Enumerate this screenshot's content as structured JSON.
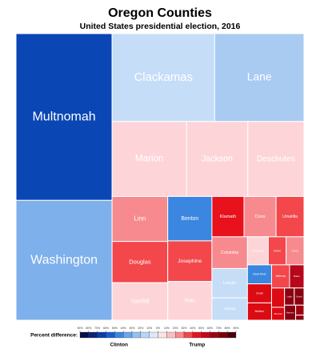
{
  "chart_data": {
    "type": "treemap",
    "title": "Oregon Counties",
    "subtitle": "United States presidential election, 2016",
    "categories": [
      "Multnomah",
      "Washington",
      "Clackamas",
      "Lane",
      "Marion",
      "Jackson",
      "Deschutes",
      "Linn",
      "Douglas",
      "Yamhill",
      "Benton",
      "Josephine",
      "Polk",
      "Klamath",
      "Coos",
      "Umatilla",
      "Columbia",
      "Lincoln",
      "Clatsop",
      "Tillamook",
      "Union",
      "Curry",
      "Hood River",
      "Crook",
      "Malheur",
      "Jefferson",
      "Baker",
      null,
      "Morrow",
      "Lake",
      "Grant",
      "Harney",
      null,
      null
    ],
    "values": [
      384,
      276,
      216,
      188,
      134,
      110,
      101,
      60,
      55,
      50,
      47,
      43,
      41,
      31,
      31,
      27,
      27,
      25,
      19,
      14,
      12,
      12,
      11,
      11,
      10,
      10,
      8,
      6,
      4,
      4,
      4,
      4,
      2,
      1
    ],
    "colors": [
      "#0a46b4",
      "#7eb0ec",
      "#c6ddf8",
      "#a9cbf2",
      "#fdd5d9",
      "#fdd5d9",
      "#fdd5d9",
      "#f78a8e",
      "#f3474b",
      "#fdd5d9",
      "#3a86e0",
      "#f3474b",
      "#fdd5d9",
      "#e8121c",
      "#f78a8e",
      "#f3474b",
      "#f78a8e",
      "#c6ddf8",
      "#c6ddf8",
      "#fdd5d9",
      "#f3474b",
      "#f78a8e",
      "#3a86e0",
      "#dc0a12",
      "#dc0a12",
      "#f3474b",
      "#b8061a",
      "#dc0a12",
      "#dc0a12",
      "#8a0010",
      "#8a0010",
      "#8a0010",
      "#a0000f",
      "#8a0010"
    ],
    "legend": {
      "title": "Percent difference:",
      "left_label": "Clinton",
      "right_label": "Trump",
      "lim": [
        -90,
        90
      ],
      "colors": [
        "#08104a",
        "#0a2478",
        "#0a3ea8",
        "#1a5ccc",
        "#3a86e0",
        "#6aa6ea",
        "#95c0f0",
        "#b9d5f6",
        "#dce9fa",
        "#fde3e5",
        "#fbbfc3",
        "#f78a8e",
        "#f3474b",
        "#e8121c",
        "#c4061a",
        "#a0000f",
        "#7a000c",
        "#4d0008"
      ],
      "ticks": [
        {
          "value": -90,
          "label": "90%"
        },
        {
          "value": -80,
          "label": "80%"
        },
        {
          "value": -70,
          "label": "70%"
        },
        {
          "value": -60,
          "label": "60%"
        },
        {
          "value": -50,
          "label": "50%"
        },
        {
          "value": -40,
          "label": "40%"
        },
        {
          "value": -30,
          "label": "30%"
        },
        {
          "value": -20,
          "label": "20%"
        },
        {
          "value": -10,
          "label": "10%"
        },
        {
          "value": 0,
          "label": "0%"
        },
        {
          "value": 10,
          "label": "10%"
        },
        {
          "value": 20,
          "label": "20%"
        },
        {
          "value": 30,
          "label": "30%"
        },
        {
          "value": 40,
          "label": "40%"
        },
        {
          "value": 50,
          "label": "50%"
        },
        {
          "value": 60,
          "label": "60%"
        },
        {
          "value": 70,
          "label": "70%"
        },
        {
          "value": 80,
          "label": "80%"
        },
        {
          "value": 90,
          "label": "90%"
        }
      ]
    }
  }
}
